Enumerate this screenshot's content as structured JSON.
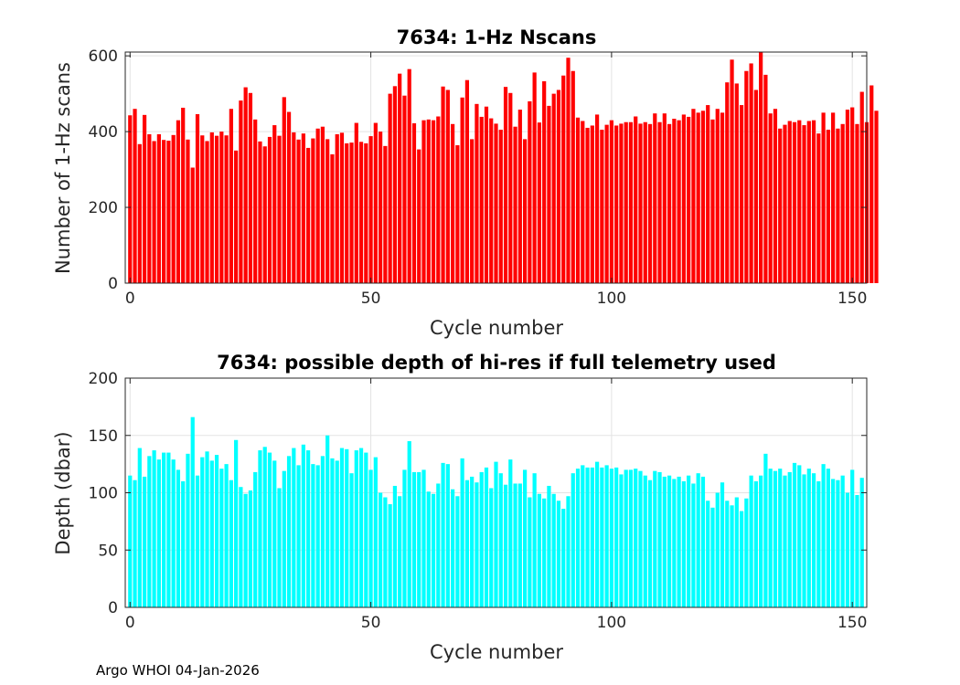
{
  "chart_data": [
    {
      "type": "bar",
      "title": "7634: 1-Hz Nscans",
      "xlabel": "Cycle number",
      "ylabel": "Number of 1-Hz scans",
      "xlim": [
        -1,
        153
      ],
      "ylim": [
        0,
        610
      ],
      "xticks": [
        0,
        50,
        100,
        150
      ],
      "yticks": [
        0,
        200,
        400,
        600
      ],
      "color": "#ff0000",
      "grid": true,
      "x_start": 0,
      "values": [
        443,
        460,
        367,
        444,
        393,
        375,
        393,
        378,
        376,
        391,
        430,
        463,
        379,
        305,
        446,
        390,
        375,
        398,
        389,
        400,
        390,
        460,
        350,
        482,
        517,
        502,
        432,
        374,
        361,
        386,
        417,
        389,
        491,
        452,
        398,
        379,
        395,
        357,
        382,
        408,
        413,
        380,
        340,
        393,
        397,
        369,
        371,
        423,
        373,
        369,
        388,
        423,
        400,
        362,
        500,
        520,
        553,
        495,
        565,
        422,
        353,
        430,
        432,
        430,
        440,
        519,
        510,
        420,
        364,
        490,
        536,
        380,
        473,
        439,
        466,
        435,
        421,
        405,
        518,
        502,
        413,
        458,
        380,
        480,
        556,
        424,
        533,
        468,
        500,
        510,
        548,
        595,
        560,
        437,
        428,
        410,
        416,
        445,
        405,
        418,
        430,
        416,
        421,
        425,
        425,
        440,
        421,
        425,
        420,
        448,
        425,
        448,
        420,
        434,
        430,
        445,
        439,
        460,
        450,
        455,
        470,
        432,
        460,
        450,
        530,
        590,
        527,
        470,
        560,
        580,
        510,
        610,
        550,
        448,
        460,
        408,
        418,
        428,
        425,
        430,
        417,
        428,
        430,
        395,
        450,
        405,
        450,
        408,
        420,
        458,
        464,
        420,
        505,
        425,
        522,
        455
      ]
    },
    {
      "type": "bar",
      "title": "7634: possible depth of hi-res if full telemetry used",
      "xlabel": "Cycle number",
      "ylabel": "Depth (dbar)",
      "xlim": [
        -1,
        153
      ],
      "ylim": [
        0,
        200
      ],
      "xticks": [
        0,
        50,
        100,
        150
      ],
      "yticks": [
        0,
        50,
        100,
        150,
        200
      ],
      "color": "#00ffff",
      "grid": true,
      "x_start": 0,
      "values": [
        115,
        111,
        139,
        114,
        132,
        137,
        129,
        135,
        135,
        129,
        120,
        110,
        134,
        166,
        115,
        131,
        136,
        128,
        133,
        121,
        125,
        111,
        146,
        105,
        99,
        102,
        118,
        137,
        140,
        135,
        128,
        104,
        119,
        132,
        139,
        124,
        142,
        137,
        125,
        124,
        132,
        150,
        130,
        128,
        139,
        138,
        117,
        137,
        139,
        135,
        120,
        131,
        100,
        96,
        90,
        106,
        97,
        120,
        145,
        118,
        118,
        120,
        101,
        99,
        108,
        126,
        125,
        103,
        97,
        130,
        111,
        114,
        109,
        118,
        122,
        104,
        127,
        117,
        107,
        129,
        108,
        108,
        120,
        96,
        117,
        99,
        95,
        106,
        99,
        93,
        86,
        97,
        117,
        121,
        124,
        122,
        122,
        127,
        122,
        124,
        121,
        122,
        116,
        120,
        120,
        121,
        119,
        115,
        111,
        119,
        118,
        114,
        115,
        112,
        114,
        110,
        115,
        108,
        117,
        114,
        93,
        87,
        100,
        109,
        93,
        89,
        96,
        84,
        95,
        115,
        110,
        115,
        134,
        121,
        119,
        121,
        115,
        118,
        126,
        124,
        116,
        121,
        117,
        110,
        125,
        121,
        112,
        111,
        115,
        100,
        120,
        98,
        113
      ]
    }
  ],
  "footer": "Argo WHOI 04-Jan-2026"
}
